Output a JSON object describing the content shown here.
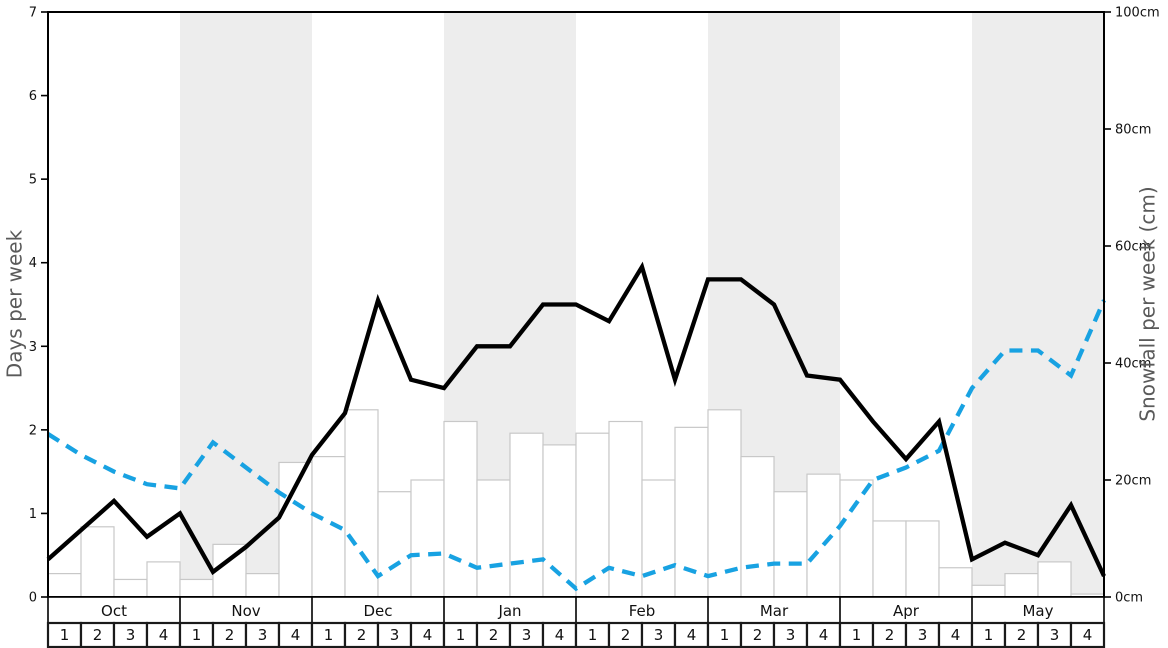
{
  "chart_data": {
    "type": "combo",
    "title": "",
    "left_axis": {
      "label": "Days per week",
      "min": 0,
      "max": 7,
      "tick_values": [
        0,
        1,
        2,
        3,
        4,
        5,
        6,
        7
      ],
      "tick_labels": [
        "0",
        "1",
        "2",
        "3",
        "4",
        "5",
        "6",
        "7"
      ]
    },
    "right_axis": {
      "label": "Snowfall per week (cm)",
      "min": 0,
      "max": 100,
      "tick_values": [
        0,
        20,
        40,
        60,
        80,
        100
      ],
      "tick_labels": [
        "0cm",
        "20cm",
        "40cm",
        "60cm",
        "80cm",
        "100cm"
      ]
    },
    "x_axis": {
      "months": [
        "Oct",
        "Nov",
        "Dec",
        "Jan",
        "Feb",
        "Mar",
        "Apr",
        "May"
      ],
      "week_labels": [
        "1",
        "2",
        "3",
        "4"
      ],
      "shaded_months": [
        "Nov",
        "Jan",
        "Mar",
        "May"
      ],
      "weeks_total": 32
    },
    "series": [
      {
        "name": "snowfall-bars",
        "type": "bar",
        "axis": "right",
        "unit": "cm",
        "values": [
          4,
          12,
          3,
          6,
          3,
          9,
          4,
          23,
          24,
          32,
          18,
          20,
          30,
          20,
          28,
          26,
          28,
          30,
          20,
          29,
          32,
          24,
          18,
          21,
          20,
          13,
          13,
          5,
          2,
          4,
          6,
          0.5
        ]
      },
      {
        "name": "black-line-days",
        "type": "line",
        "style": "solid",
        "axis": "left",
        "x_note": "33 points at week boundaries from start of Oct wk1 to end of May wk4",
        "values": [
          0.45,
          0.8,
          1.15,
          0.72,
          1.0,
          0.3,
          0.6,
          0.95,
          1.7,
          2.2,
          3.55,
          2.6,
          2.5,
          3.0,
          3.0,
          3.5,
          3.5,
          3.3,
          3.95,
          2.6,
          3.8,
          3.8,
          3.5,
          2.65,
          2.6,
          2.1,
          1.65,
          2.1,
          0.45,
          0.65,
          0.5,
          1.1,
          0.25
        ]
      },
      {
        "name": "blue-dashed-line-days",
        "type": "line",
        "style": "dashed",
        "axis": "left",
        "x_note": "33 points at week boundaries from start of Oct wk1 to end of May wk4",
        "values": [
          1.95,
          1.7,
          1.5,
          1.35,
          1.3,
          1.85,
          1.55,
          1.25,
          1.0,
          0.8,
          0.25,
          0.5,
          0.52,
          0.35,
          0.4,
          0.45,
          0.1,
          0.35,
          0.25,
          0.38,
          0.25,
          0.35,
          0.4,
          0.4,
          0.85,
          1.4,
          1.55,
          1.75,
          2.5,
          2.95,
          2.95,
          2.65,
          3.55
        ]
      }
    ],
    "colors": {
      "band_gray": "#ededed",
      "bar_fill": "#ffffff",
      "bar_stroke": "#c8c8c8",
      "black_line": "#000000",
      "blue_line": "#18a2e2",
      "axis_title_gray": "#5a5a5a",
      "tick_text": "#111111",
      "spine": "#000000"
    },
    "legend": "none"
  }
}
